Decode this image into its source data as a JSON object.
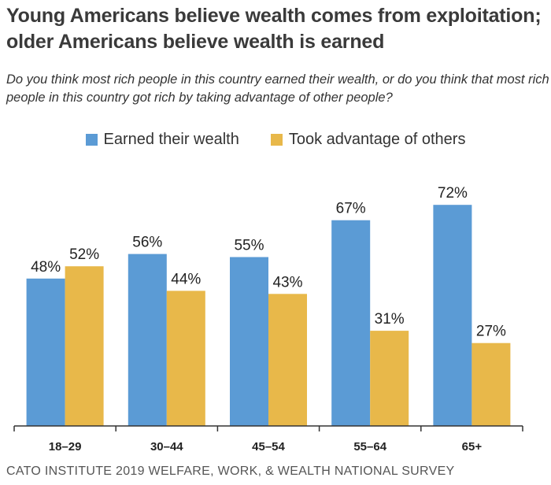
{
  "chart_data": {
    "type": "bar",
    "title": "Young Americans believe wealth comes from exploitation; older Americans believe wealth is earned",
    "subtitle": "Do you think most rich people in this country earned their wealth, or do you think that most rich people in this country got rich by taking advantage of other people?",
    "categories": [
      "18–29",
      "30–44",
      "45–54",
      "55–64",
      "65+"
    ],
    "series": [
      {
        "name": "Earned their wealth",
        "color": "#5b9bd5",
        "values": [
          48,
          56,
          55,
          67,
          72
        ],
        "labels": [
          "48%",
          "56%",
          "55%",
          "67%",
          "72%"
        ]
      },
      {
        "name": "Took advantage of others",
        "color": "#e8b84a",
        "values": [
          52,
          44,
          43,
          31,
          27
        ],
        "labels": [
          "52%",
          "44%",
          "43%",
          "31%",
          "27%"
        ]
      }
    ],
    "ylim": [
      0,
      100
    ],
    "grid": false,
    "legend_position": "top-center",
    "xlabel": "",
    "ylabel": ""
  },
  "source": "CATO INSTITUTE 2019 WELFARE, WORK, & WEALTH NATIONAL SURVEY"
}
